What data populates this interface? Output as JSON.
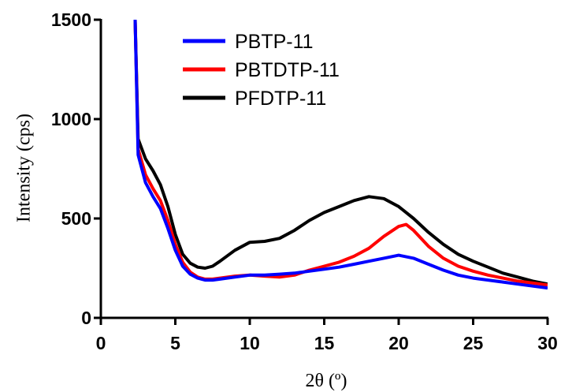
{
  "chart_data": {
    "type": "line",
    "xlabel": "2θ (º)",
    "ylabel": "Intensity (cps)",
    "xlim": [
      0,
      30
    ],
    "ylim": [
      0,
      1500
    ],
    "xticks": [
      0,
      5,
      10,
      15,
      20,
      25,
      30
    ],
    "yticks": [
      0,
      500,
      1000,
      1500
    ],
    "grid": false,
    "legend_position": "top-left",
    "series": [
      {
        "name": "PBTP-11",
        "color": "#0000ff",
        "points": [
          [
            2.3,
            1500
          ],
          [
            2.5,
            820
          ],
          [
            3,
            680
          ],
          [
            3.5,
            610
          ],
          [
            4,
            550
          ],
          [
            4.5,
            450
          ],
          [
            5,
            340
          ],
          [
            5.5,
            260
          ],
          [
            6,
            220
          ],
          [
            6.5,
            200
          ],
          [
            7,
            190
          ],
          [
            7.5,
            190
          ],
          [
            8,
            195
          ],
          [
            9,
            205
          ],
          [
            10,
            215
          ],
          [
            11,
            215
          ],
          [
            12,
            220
          ],
          [
            13,
            225
          ],
          [
            14,
            235
          ],
          [
            15,
            245
          ],
          [
            16,
            255
          ],
          [
            17,
            270
          ],
          [
            18,
            285
          ],
          [
            19,
            300
          ],
          [
            20,
            315
          ],
          [
            21,
            300
          ],
          [
            22,
            270
          ],
          [
            23,
            240
          ],
          [
            24,
            215
          ],
          [
            25,
            200
          ],
          [
            26,
            190
          ],
          [
            27,
            180
          ],
          [
            28,
            170
          ],
          [
            29,
            160
          ],
          [
            30,
            150
          ]
        ]
      },
      {
        "name": "PBTDTP-11",
        "color": "#ff0000",
        "points": [
          [
            2.3,
            1500
          ],
          [
            2.5,
            850
          ],
          [
            3,
            720
          ],
          [
            3.5,
            650
          ],
          [
            4,
            590
          ],
          [
            4.5,
            490
          ],
          [
            5,
            370
          ],
          [
            5.5,
            280
          ],
          [
            6,
            230
          ],
          [
            6.5,
            205
          ],
          [
            7,
            195
          ],
          [
            7.5,
            195
          ],
          [
            8,
            200
          ],
          [
            9,
            210
          ],
          [
            10,
            215
          ],
          [
            11,
            210
          ],
          [
            12,
            205
          ],
          [
            13,
            215
          ],
          [
            14,
            240
          ],
          [
            15,
            260
          ],
          [
            16,
            280
          ],
          [
            17,
            310
          ],
          [
            18,
            350
          ],
          [
            19,
            410
          ],
          [
            20,
            460
          ],
          [
            20.5,
            470
          ],
          [
            21,
            440
          ],
          [
            22,
            360
          ],
          [
            23,
            300
          ],
          [
            24,
            260
          ],
          [
            25,
            235
          ],
          [
            26,
            215
          ],
          [
            27,
            200
          ],
          [
            28,
            185
          ],
          [
            29,
            175
          ],
          [
            30,
            165
          ]
        ]
      },
      {
        "name": "PFDTP-11",
        "color": "#000000",
        "points": [
          [
            2.3,
            1500
          ],
          [
            2.5,
            900
          ],
          [
            3,
            800
          ],
          [
            3.5,
            740
          ],
          [
            4,
            670
          ],
          [
            4.5,
            560
          ],
          [
            5,
            420
          ],
          [
            5.5,
            320
          ],
          [
            6,
            275
          ],
          [
            6.5,
            255
          ],
          [
            7,
            250
          ],
          [
            7.5,
            260
          ],
          [
            8,
            285
          ],
          [
            9,
            340
          ],
          [
            10,
            380
          ],
          [
            11,
            385
          ],
          [
            12,
            400
          ],
          [
            13,
            440
          ],
          [
            14,
            490
          ],
          [
            15,
            530
          ],
          [
            16,
            560
          ],
          [
            17,
            590
          ],
          [
            18,
            610
          ],
          [
            19,
            600
          ],
          [
            20,
            560
          ],
          [
            21,
            500
          ],
          [
            22,
            430
          ],
          [
            23,
            370
          ],
          [
            24,
            320
          ],
          [
            25,
            285
          ],
          [
            26,
            255
          ],
          [
            27,
            225
          ],
          [
            28,
            205
          ],
          [
            29,
            185
          ],
          [
            30,
            170
          ]
        ]
      }
    ]
  }
}
